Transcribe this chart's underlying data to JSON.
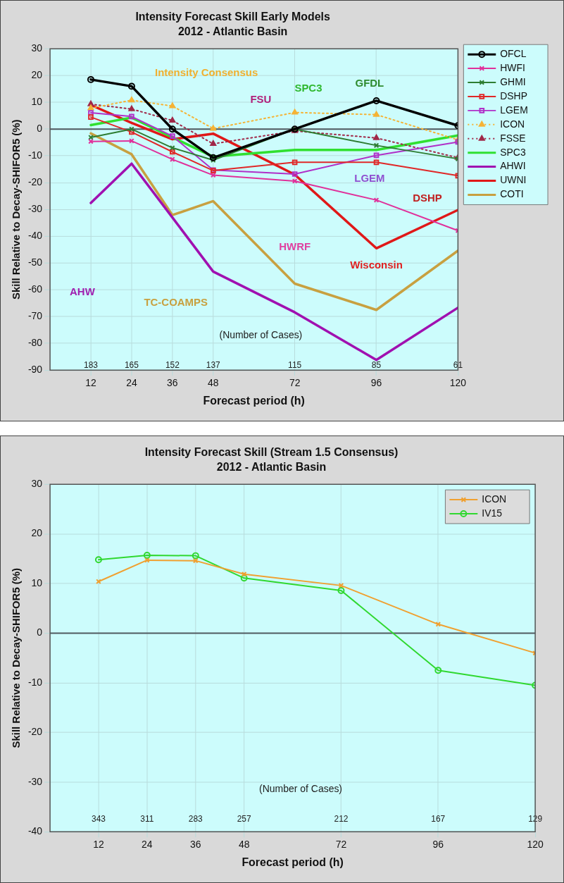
{
  "chart_data": [
    {
      "type": "line",
      "title": "Intensity Forecast Skill Early Models",
      "subtitle": "2012 - Atlantic Basin",
      "xlabel": "Forecast period (h)",
      "ylabel": "Skill Relative to Decay-SHIFOR5 (%)",
      "x": [
        12,
        24,
        36,
        48,
        72,
        96,
        120
      ],
      "xlim": [
        0,
        120
      ],
      "xticks": [
        12,
        24,
        36,
        48,
        72,
        96,
        120
      ],
      "ylim": [
        -90,
        30
      ],
      "yticks": [
        -90,
        -80,
        -70,
        -60,
        -50,
        -40,
        -30,
        -20,
        -10,
        0,
        10,
        20,
        30
      ],
      "grid": true,
      "legend": "right",
      "ref_lines": [
        {
          "axis": "y",
          "value": 0,
          "color": "#505a60"
        }
      ],
      "annotations": [
        "Intensity Consensus",
        "FSU",
        "SPC3",
        "GFDL",
        "LGEM",
        "DSHP",
        "HWRF",
        "Wisconsin",
        "AHW",
        "TC-COAMPS",
        "(Number of Cases)",
        "183",
        "165",
        "152",
        "137",
        "115",
        "85",
        "61"
      ],
      "series": [
        {
          "name": "OFCL",
          "color": "#000000",
          "marker": "circle",
          "values": [
            18.5,
            16,
            0,
            -10.7,
            0,
            10.6,
            1.3
          ]
        },
        {
          "name": "HWFI",
          "color": "#e0309a",
          "marker": "cross",
          "values": [
            -4.6,
            -4.4,
            -11.3,
            -17.2,
            -19.4,
            -26.5,
            -37.9
          ]
        },
        {
          "name": "GHMI",
          "color": "#2e7d32",
          "marker": "cross",
          "values": [
            -3.1,
            0,
            -7,
            -11.6,
            0,
            -6.1,
            -11.1
          ]
        },
        {
          "name": "DSHP",
          "color": "#e02828",
          "marker": "square",
          "values": [
            4.5,
            -1.1,
            -8.5,
            -15.5,
            -12.4,
            -12.4,
            -17.4
          ]
        },
        {
          "name": "LGEM",
          "color": "#b030c8",
          "marker": "square",
          "values": [
            6.1,
            4.7,
            -2.6,
            -15.3,
            -16.8,
            -9.8,
            -4.8
          ]
        },
        {
          "name": "ICON",
          "color": "#f5b335",
          "marker": "triangle",
          "line_style": "dotted",
          "values": [
            7.8,
            10.8,
            8.6,
            0.2,
            6.2,
            5.4,
            -4
          ]
        },
        {
          "name": "FSSE",
          "color": "#a02848",
          "marker": "triangle",
          "line_style": "dotted",
          "values": [
            9.3,
            7.5,
            3.2,
            -5.5,
            -0.7,
            -3.3,
            -10.7
          ]
        },
        {
          "name": "SPC3",
          "color": "#30e030",
          "marker": "none",
          "values": [
            1.5,
            4.3,
            -3.1,
            -10.3,
            -7.8,
            -7.8,
            -2.4
          ]
        },
        {
          "name": "AHWI",
          "color": "#a010b0",
          "marker": "none",
          "values": [
            -27.6,
            -12.9,
            -33,
            -53.2,
            -68.4,
            -86.2,
            -66.7
          ]
        },
        {
          "name": "UWNI",
          "color": "#e01818",
          "marker": "none",
          "values": [
            9,
            2.3,
            -3.8,
            -1.7,
            -17,
            -44.5,
            -30.2
          ]
        },
        {
          "name": "COTI",
          "color": "#c8a040",
          "marker": "none",
          "values": [
            -1.6,
            -9.4,
            -32.1,
            -26.9,
            -57.7,
            -67.5,
            -45.4
          ]
        }
      ]
    },
    {
      "type": "line",
      "title": "Intensity Forecast Skill (Stream 1.5 Consensus)",
      "subtitle": "2012 - Atlantic Basin",
      "xlabel": "Forecast period (h)",
      "ylabel": "Skill Relative to Decay-SHIFOR5 (%)",
      "x": [
        12,
        24,
        36,
        48,
        72,
        96,
        120
      ],
      "xlim": [
        0,
        120
      ],
      "xticks": [
        12,
        24,
        36,
        48,
        72,
        96,
        120
      ],
      "ylim": [
        -40,
        30
      ],
      "yticks": [
        -40,
        -30,
        -20,
        -10,
        0,
        10,
        20,
        30
      ],
      "grid": true,
      "legend": "top right",
      "ref_lines": [
        {
          "axis": "y",
          "value": 0,
          "color": "#505a60"
        }
      ],
      "annotations": [
        "(Number of Cases)",
        "343",
        "311",
        "283",
        "257",
        "212",
        "167",
        "129"
      ],
      "series": [
        {
          "name": "ICON",
          "color": "#f0a030",
          "marker": "cross",
          "values": [
            10.4,
            14.7,
            14.6,
            11.9,
            9.6,
            1.8,
            -4
          ]
        },
        {
          "name": "IV15",
          "color": "#30d830",
          "marker": "circle",
          "values": [
            14.8,
            15.7,
            15.6,
            11.1,
            8.6,
            -7.5,
            -10.5
          ]
        }
      ]
    }
  ]
}
